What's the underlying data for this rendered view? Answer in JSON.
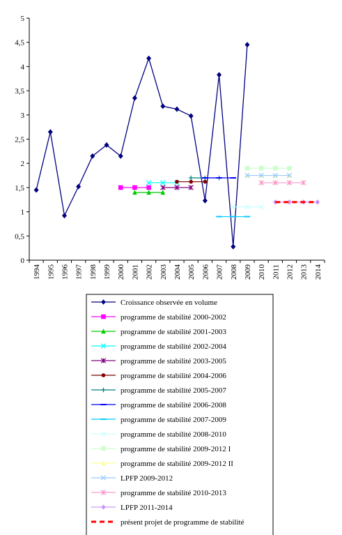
{
  "chart_data": {
    "type": "line",
    "x": [
      1994,
      1995,
      1996,
      1997,
      1998,
      1999,
      2000,
      2001,
      2002,
      2003,
      2004,
      2005,
      2006,
      2007,
      2008,
      2009,
      2010,
      2011,
      2012,
      2013,
      2014
    ],
    "x_tick_labels": [
      "1994",
      "1995",
      "1996",
      "1997",
      "1998",
      "1999",
      "2000",
      "2001",
      "2002",
      "2003",
      "2004",
      "2005",
      "2006",
      "2007",
      "2008",
      "2009",
      "2010",
      "2011",
      "2012",
      "2013",
      "2014"
    ],
    "ylim": [
      0,
      5
    ],
    "y_ticks": [
      0,
      0.5,
      1,
      1.5,
      2,
      2.5,
      3,
      3.5,
      4,
      4.5,
      5
    ],
    "y_tick_labels": [
      "0",
      "0,5",
      "1",
      "1,5",
      "2",
      "2,5",
      "3",
      "3,5",
      "4",
      "4,5",
      "5"
    ],
    "grid": false,
    "legend_position": "bottom",
    "series": [
      {
        "name": "Croissance observée en volume",
        "color": "#000080",
        "marker": "diamond",
        "dash": "solid",
        "x": [
          1994,
          1995,
          1996,
          1997,
          1998,
          1999,
          2000,
          2001,
          2002,
          2003,
          2004,
          2005,
          2006,
          2007,
          2008,
          2009
        ],
        "values": [
          1.45,
          2.65,
          0.92,
          1.52,
          2.15,
          2.38,
          2.15,
          3.35,
          4.17,
          3.18,
          3.12,
          2.98,
          1.23,
          3.83,
          0.28,
          4.45
        ]
      },
      {
        "name": "programme de stabilité 2000-2002",
        "color": "#FF00FF",
        "marker": "square",
        "dash": "solid",
        "x": [
          2000,
          2001,
          2002
        ],
        "values": [
          1.5,
          1.5,
          1.5
        ]
      },
      {
        "name": "programme de stabilité 2001-2003",
        "color": "#00CC00",
        "marker": "triangle",
        "dash": "solid",
        "x": [
          2001,
          2002,
          2003
        ],
        "values": [
          1.4,
          1.4,
          1.4
        ]
      },
      {
        "name": "programme de stabilité 2002-2004",
        "color": "#00FFFF",
        "marker": "x",
        "dash": "solid",
        "x": [
          2002,
          2003,
          2004
        ],
        "values": [
          1.6,
          1.6,
          1.6
        ]
      },
      {
        "name": "programme de stabilité 2003-2005",
        "color": "#800080",
        "marker": "star",
        "dash": "solid",
        "x": [
          2003,
          2004,
          2005
        ],
        "values": [
          1.5,
          1.5,
          1.5
        ]
      },
      {
        "name": "programme de stabilité 2004-2006",
        "color": "#800000",
        "marker": "circle",
        "dash": "solid",
        "x": [
          2004,
          2005,
          2006
        ],
        "values": [
          1.62,
          1.62,
          1.62
        ]
      },
      {
        "name": "programme de stabilité 2005-2007",
        "color": "#008080",
        "marker": "plus",
        "dash": "solid",
        "x": [
          2005,
          2006,
          2007
        ],
        "values": [
          1.7,
          1.7,
          1.7
        ]
      },
      {
        "name": "programme de stabilité 2006-2008",
        "color": "#0000FF",
        "marker": "hline",
        "dash": "solid",
        "x": [
          2006,
          2007,
          2008
        ],
        "values": [
          1.7,
          1.7,
          1.7
        ]
      },
      {
        "name": "programme de stabilité 2007-2009",
        "color": "#00CCFF",
        "marker": "hline",
        "dash": "solid",
        "x": [
          2007,
          2008,
          2009
        ],
        "values": [
          0.9,
          0.9,
          0.9
        ]
      },
      {
        "name": "programme de stabilité 2008-2010",
        "color": "#CCFFFF",
        "marker": "x",
        "dash": "solid",
        "x": [
          2008,
          2009,
          2010
        ],
        "values": [
          1.1,
          1.1,
          1.1
        ]
      },
      {
        "name": "programme de stabilité 2009-2012 I",
        "color": "#CCFFCC",
        "marker": "square",
        "dash": "solid",
        "x": [
          2009,
          2010,
          2011,
          2012
        ],
        "values": [
          1.9,
          1.9,
          1.9,
          1.9
        ]
      },
      {
        "name": "programme de stabilité 2009-2012 II",
        "color": "#FFFF99",
        "marker": "triangle",
        "dash": "solid",
        "x": [
          2009,
          2010,
          2011,
          2012
        ],
        "values": [
          1.75,
          1.75,
          1.75,
          1.75
        ]
      },
      {
        "name": "LPFP 2009-2012",
        "color": "#99CCFF",
        "marker": "x",
        "dash": "solid",
        "x": [
          2009,
          2010,
          2011,
          2012
        ],
        "values": [
          1.75,
          1.75,
          1.75,
          1.75
        ]
      },
      {
        "name": "programme de stabilité 2010-2013",
        "color": "#FF99CC",
        "marker": "star",
        "dash": "solid",
        "x": [
          2010,
          2011,
          2012,
          2013
        ],
        "values": [
          1.6,
          1.6,
          1.6,
          1.6
        ]
      },
      {
        "name": "LPFP 2011-2014",
        "color": "#CC99FF",
        "marker": "diamond",
        "dash": "solid",
        "x": [
          2011,
          2012,
          2013,
          2014
        ],
        "values": [
          1.2,
          1.2,
          1.2,
          1.2
        ]
      },
      {
        "name": "présent projet de programme de stabilité",
        "color": "#FF0000",
        "marker": "none",
        "dash": "dashed",
        "x": [
          2011,
          2012,
          2013,
          2014
        ],
        "values": [
          1.2,
          1.2,
          1.2,
          1.2
        ]
      }
    ]
  }
}
